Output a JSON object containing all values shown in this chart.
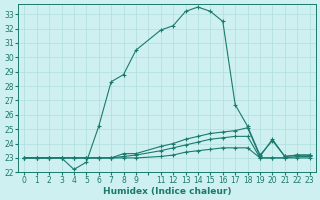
{
  "title": "",
  "xlabel": "Humidex (Indice chaleur)",
  "bg_color": "#cff0f0",
  "grid_color": "#b0dede",
  "line_color": "#1a7a6e",
  "xlim": [
    -0.5,
    23.5
  ],
  "ylim": [
    22,
    33.7
  ],
  "xtick_labels": [
    "0",
    "1",
    "2",
    "3",
    "4",
    "5",
    "6",
    "7",
    "8",
    "9",
    "",
    "11",
    "12",
    "13",
    "14",
    "15",
    "16",
    "17",
    "18",
    "19",
    "20",
    "21",
    "22",
    "23"
  ],
  "xtick_positions": [
    0,
    1,
    2,
    3,
    4,
    5,
    6,
    7,
    8,
    9,
    10,
    11,
    12,
    13,
    14,
    15,
    16,
    17,
    18,
    19,
    20,
    21,
    22,
    23
  ],
  "yticks": [
    22,
    23,
    24,
    25,
    26,
    27,
    28,
    29,
    30,
    31,
    32,
    33
  ],
  "curves": [
    {
      "x": [
        0,
        1,
        2,
        3,
        4,
        5,
        6,
        7,
        8,
        9,
        11,
        12,
        13,
        14,
        15,
        16,
        17,
        18,
        19,
        20,
        21,
        22,
        23
      ],
      "y": [
        23,
        23,
        23,
        23,
        22.2,
        22.7,
        25.2,
        28.3,
        28.8,
        30.5,
        31.9,
        32.2,
        33.2,
        33.5,
        33.2,
        32.5,
        26.7,
        25.2,
        23.2,
        24.2,
        23.1,
        23.2,
        23.2
      ]
    },
    {
      "x": [
        0,
        1,
        2,
        3,
        4,
        5,
        6,
        7,
        8,
        9,
        11,
        12,
        13,
        14,
        15,
        16,
        17,
        18,
        19,
        20,
        21,
        22,
        23
      ],
      "y": [
        23,
        23,
        23,
        23,
        23,
        23,
        23,
        23,
        23.3,
        23.3,
        23.8,
        24.0,
        24.3,
        24.5,
        24.7,
        24.8,
        24.9,
        25.1,
        23.1,
        24.3,
        23.1,
        23.2,
        23.2
      ]
    },
    {
      "x": [
        0,
        1,
        2,
        3,
        4,
        5,
        6,
        7,
        8,
        9,
        11,
        12,
        13,
        14,
        15,
        16,
        17,
        18,
        19,
        20,
        21,
        22,
        23
      ],
      "y": [
        23,
        23,
        23,
        23,
        23,
        23,
        23,
        23,
        23.1,
        23.2,
        23.5,
        23.7,
        23.9,
        24.1,
        24.3,
        24.4,
        24.5,
        24.5,
        23.0,
        23.0,
        23.0,
        23.1,
        23.1
      ]
    },
    {
      "x": [
        0,
        1,
        2,
        3,
        4,
        5,
        6,
        7,
        8,
        9,
        11,
        12,
        13,
        14,
        15,
        16,
        17,
        18,
        19,
        20,
        21,
        22,
        23
      ],
      "y": [
        23,
        23,
        23,
        23,
        23,
        23,
        23,
        23,
        23,
        23,
        23.1,
        23.2,
        23.4,
        23.5,
        23.6,
        23.7,
        23.7,
        23.7,
        23.0,
        23.0,
        23.0,
        23.0,
        23.0
      ]
    }
  ]
}
